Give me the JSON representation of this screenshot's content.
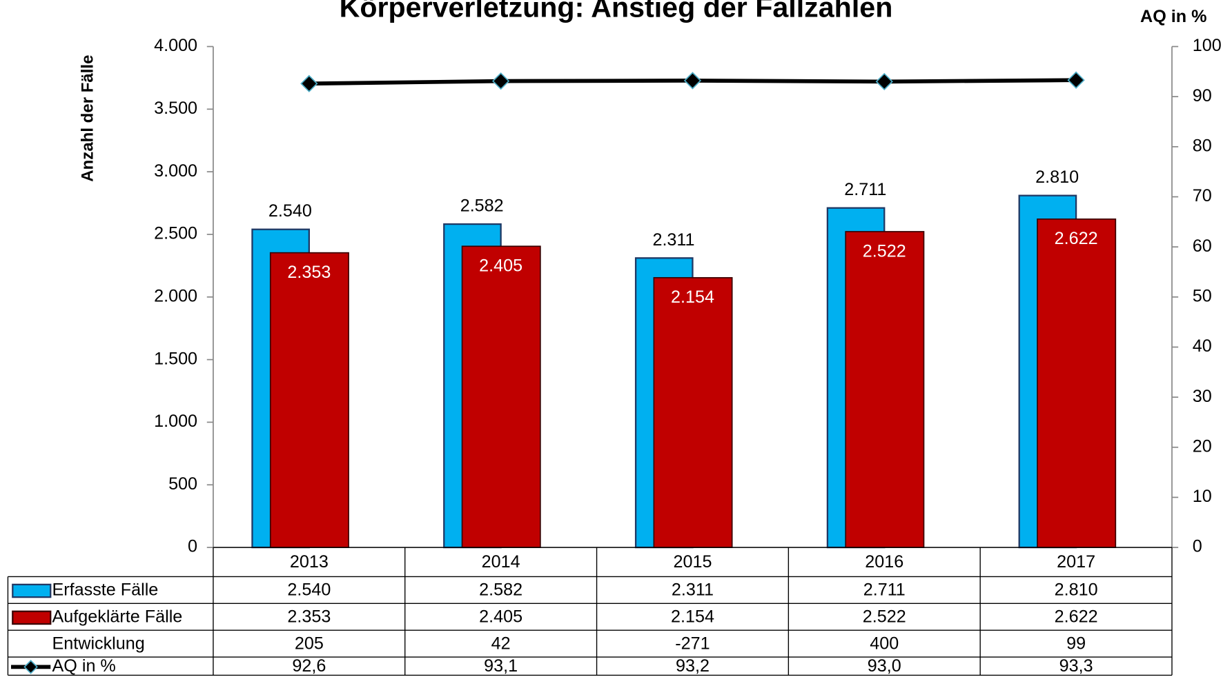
{
  "chart_data": {
    "type": "bar",
    "title": "Körperverletzung: Anstieg der Fallzahlen",
    "y_label": "Anzahl der Fälle",
    "y2_label": "AQ in %",
    "categories": [
      "2013",
      "2014",
      "2015",
      "2016",
      "2017"
    ],
    "series": [
      {
        "name": "Erfasste Fälle",
        "color": "#00b0f0",
        "values": [
          2540,
          2582,
          2311,
          2711,
          2810
        ],
        "value_labels": [
          "2.540",
          "2.582",
          "2.311",
          "2.711",
          "2.810"
        ]
      },
      {
        "name": "Aufgeklärte Fälle",
        "color": "#c00000",
        "values": [
          2353,
          2405,
          2154,
          2522,
          2622
        ],
        "value_labels": [
          "2.353",
          "2.405",
          "2.154",
          "2.522",
          "2.622"
        ]
      },
      {
        "name": "AQ in %",
        "type": "line",
        "axis": "y2",
        "color": "#000000",
        "values": [
          92.6,
          93.1,
          93.2,
          93.0,
          93.3
        ],
        "value_labels": [
          "92,6",
          "93,1",
          "93,2",
          "93,0",
          "93,3"
        ]
      }
    ],
    "table_rows": [
      {
        "name": "Entwicklung",
        "values": [
          205,
          42,
          -271,
          400,
          99
        ]
      }
    ],
    "ylim": [
      0,
      4000
    ],
    "yticks": [
      0,
      500,
      {
        "value": 1000,
        "label": "1.000"
      },
      {
        "value": 1500,
        "label": "1.500"
      },
      {
        "value": 2000,
        "label": "2.000"
      },
      {
        "value": 2500,
        "label": "2.500"
      },
      {
        "value": 3000,
        "label": "3.000"
      },
      {
        "value": 3500,
        "label": "3.500"
      },
      {
        "value": 4000,
        "label": "4.000"
      }
    ],
    "y2lim": [
      0,
      100
    ],
    "y2ticks": [
      0,
      10,
      20,
      30,
      40,
      50,
      60,
      70,
      80,
      90,
      100
    ]
  }
}
